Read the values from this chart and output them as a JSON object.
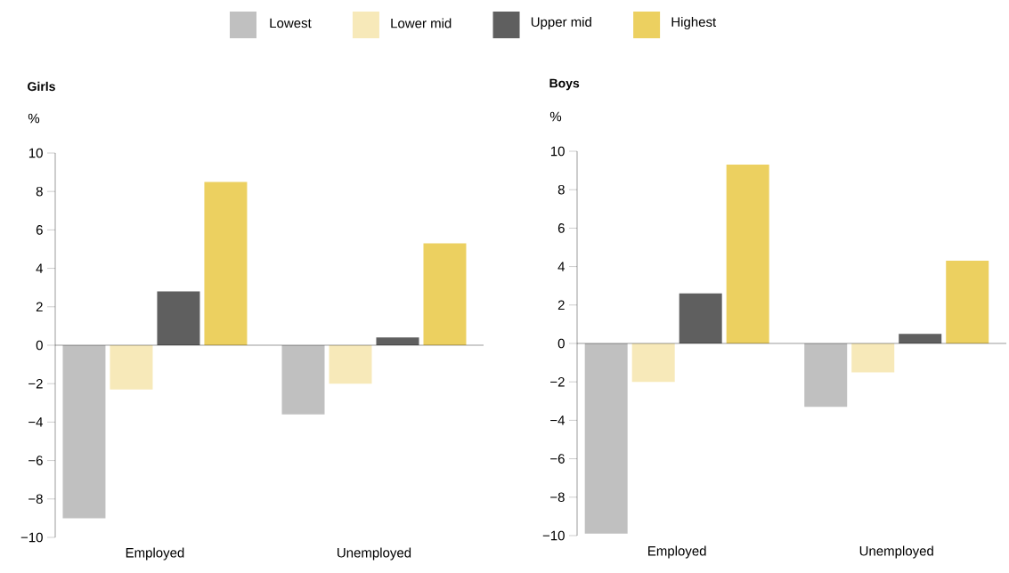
{
  "chart_data": [
    {
      "type": "bar",
      "title": "Girls",
      "ylabel": "%",
      "categories": [
        "Employed",
        "Unemployed"
      ],
      "legend": "top",
      "series": [
        {
          "name": "Lowest",
          "color": "#c0c0c0",
          "values": [
            -9.0,
            -3.6
          ]
        },
        {
          "name": "Lower mid",
          "color": "#f7e9b9",
          "values": [
            -2.3,
            -2.0
          ]
        },
        {
          "name": "Upper mid",
          "color": "#5f5f5f",
          "values": [
            2.8,
            0.4
          ]
        },
        {
          "name": "Highest",
          "color": "#ecd060",
          "values": [
            8.5,
            5.3
          ]
        }
      ],
      "ylim": [
        -10,
        10
      ],
      "yticks": [
        {
          "value": -10,
          "label": "−10"
        },
        {
          "value": -8,
          "label": "−8"
        },
        {
          "value": -6,
          "label": "−6"
        },
        {
          "value": -4,
          "label": "−4"
        },
        {
          "value": -2,
          "label": "−2"
        },
        0,
        2,
        4,
        6,
        8,
        10
      ]
    },
    {
      "type": "bar",
      "title": "Boys",
      "ylabel": "%",
      "categories": [
        "Employed",
        "Unemployed"
      ],
      "series": [
        {
          "color": "#c0c0c0",
          "values": [
            -9.9,
            -3.3
          ]
        },
        {
          "color": "#f7e9b9",
          "values": [
            -2.0,
            -1.5
          ]
        },
        {
          "color": "#5f5f5f",
          "values": [
            2.6,
            0.5
          ]
        },
        {
          "color": "#ecd060",
          "values": [
            9.3,
            4.3
          ]
        }
      ],
      "ylim": [
        -10,
        10
      ],
      "yticks": [
        {
          "value": -10,
          "label": "−10"
        },
        {
          "value": -8,
          "label": "−8"
        },
        {
          "value": -6,
          "label": "−6"
        },
        {
          "value": -4,
          "label": "−4"
        },
        {
          "value": -2,
          "label": "−2"
        },
        0,
        2,
        4,
        6,
        8,
        10
      ]
    }
  ]
}
